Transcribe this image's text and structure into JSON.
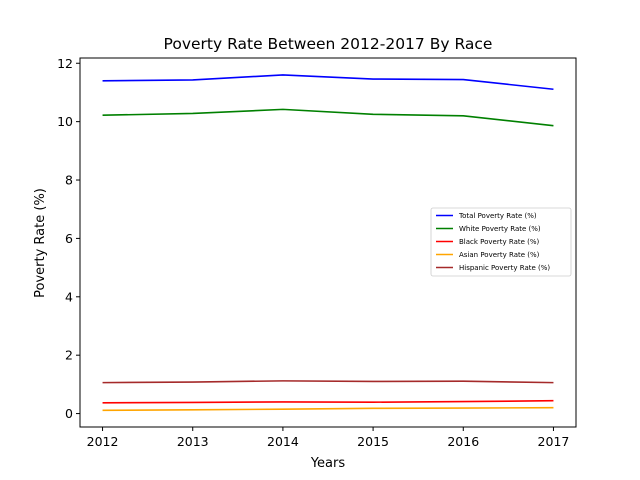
{
  "chart_data": {
    "type": "line",
    "title": "Poverty Rate Between 2012-2017 By Race",
    "xlabel": "Years",
    "ylabel": "Poverty Rate (%)",
    "x": [
      2012,
      2013,
      2014,
      2015,
      2016,
      2017
    ],
    "xticks": [
      "2012",
      "2013",
      "2014",
      "2015",
      "2016",
      "2017"
    ],
    "yticks": [
      0,
      2,
      4,
      6,
      8,
      10,
      12
    ],
    "ytick_labels": [
      "0",
      "2",
      "4",
      "6",
      "8",
      "10",
      "12"
    ],
    "xlim": [
      2011.75,
      2017.25
    ],
    "ylim": [
      -0.46,
      12.18
    ],
    "grid": false,
    "legend_position": "center-right",
    "series": [
      {
        "name": "Total Poverty Rate (%)",
        "color": "#0000ff",
        "values": [
          11.4,
          11.43,
          11.6,
          11.46,
          11.44,
          11.11
        ]
      },
      {
        "name": "White Poverty Rate (%)",
        "color": "#008000",
        "values": [
          10.22,
          10.28,
          10.42,
          10.25,
          10.2,
          9.86
        ]
      },
      {
        "name": "Black Poverty Rate (%)",
        "color": "#ff0000",
        "values": [
          0.37,
          0.38,
          0.4,
          0.39,
          0.41,
          0.44
        ]
      },
      {
        "name": "Asian Poverty Rate (%)",
        "color": "#ffa500",
        "values": [
          0.11,
          0.13,
          0.15,
          0.18,
          0.19,
          0.2
        ]
      },
      {
        "name": "Hispanic Poverty Rate (%)",
        "color": "#a52a2a",
        "values": [
          1.06,
          1.08,
          1.12,
          1.1,
          1.11,
          1.06
        ]
      }
    ]
  }
}
